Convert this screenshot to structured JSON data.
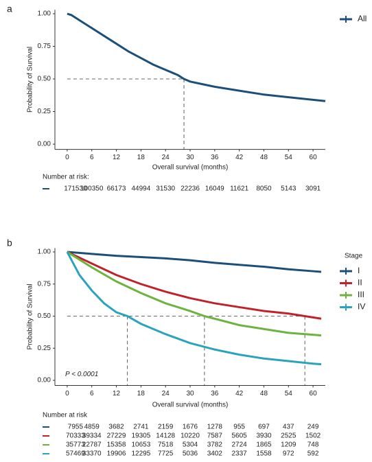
{
  "chart_data": [
    {
      "type": "line",
      "panel_label": "a",
      "xlabel": "Overall survival (months)",
      "ylabel": "Probability of Survival",
      "xlim": [
        -3,
        63
      ],
      "ylim": [
        -0.04,
        1.03
      ],
      "xticks": [
        0,
        6,
        12,
        18,
        24,
        30,
        36,
        42,
        48,
        54,
        60
      ],
      "yticks": [
        {
          "value": 0,
          "label": "0.00"
        },
        {
          "value": 0.25,
          "label": "0.25"
        },
        {
          "value": 0.5,
          "label": "0.50"
        },
        {
          "value": 0.75,
          "label": "0.75"
        },
        {
          "value": 1,
          "label": "1.00"
        }
      ],
      "median_y": 0.5,
      "median_x": [
        28.5
      ],
      "series": [
        {
          "name": "All",
          "color": "#1b4f7a",
          "x": [
            0,
            1,
            3,
            6,
            9,
            12,
            15,
            18,
            21,
            24,
            27,
            28.5,
            30,
            33,
            36,
            42,
            48,
            54,
            60,
            63
          ],
          "values": [
            1.0,
            0.99,
            0.95,
            0.89,
            0.83,
            0.77,
            0.71,
            0.66,
            0.61,
            0.57,
            0.53,
            0.5,
            0.48,
            0.46,
            0.44,
            0.41,
            0.38,
            0.36,
            0.34,
            0.33
          ]
        }
      ],
      "risk_table": {
        "title": "Number at risk:",
        "rows": [
          [
            171530,
            100350,
            66173,
            44994,
            31530,
            22236,
            16049,
            11621,
            8050,
            5143,
            3091
          ]
        ]
      }
    },
    {
      "type": "line",
      "panel_label": "b",
      "xlabel": "Overall survival (months)",
      "ylabel": "Probability of Survival",
      "xlim": [
        -3,
        63
      ],
      "ylim": [
        -0.04,
        1.03
      ],
      "xticks": [
        0,
        6,
        12,
        18,
        24,
        30,
        36,
        42,
        48,
        54,
        60
      ],
      "yticks": [
        {
          "value": 0,
          "label": "0.00"
        },
        {
          "value": 0.25,
          "label": "0.25"
        },
        {
          "value": 0.5,
          "label": "0.50"
        },
        {
          "value": 0.75,
          "label": "0.75"
        },
        {
          "value": 1,
          "label": "1.00"
        }
      ],
      "legend_title": "Stage",
      "annotation": "P < 0.0001",
      "median_y": 0.5,
      "median_x": [
        14.7,
        33.5,
        58
      ],
      "series": [
        {
          "name": "I",
          "color": "#1b4f7a",
          "x": [
            0,
            6,
            12,
            18,
            24,
            30,
            36,
            42,
            48,
            54,
            60,
            62
          ],
          "values": [
            1.0,
            0.985,
            0.97,
            0.96,
            0.95,
            0.935,
            0.915,
            0.9,
            0.885,
            0.865,
            0.85,
            0.845
          ]
        },
        {
          "name": "II",
          "color": "#c0222a",
          "x": [
            0,
            6,
            12,
            18,
            24,
            30,
            36,
            42,
            48,
            54,
            58,
            60,
            62
          ],
          "values": [
            1.0,
            0.91,
            0.82,
            0.75,
            0.69,
            0.64,
            0.6,
            0.57,
            0.54,
            0.52,
            0.5,
            0.49,
            0.48
          ]
        },
        {
          "name": "III",
          "color": "#6db33f",
          "x": [
            0,
            6,
            12,
            18,
            24,
            30,
            33.5,
            36,
            42,
            48,
            54,
            60,
            62
          ],
          "values": [
            1.0,
            0.88,
            0.77,
            0.68,
            0.6,
            0.54,
            0.5,
            0.48,
            0.43,
            0.4,
            0.37,
            0.355,
            0.35
          ]
        },
        {
          "name": "IV",
          "color": "#2ba3bd",
          "x": [
            0,
            3,
            6,
            9,
            12,
            14.7,
            18,
            24,
            30,
            36,
            42,
            48,
            54,
            60,
            62
          ],
          "values": [
            1.0,
            0.82,
            0.7,
            0.6,
            0.53,
            0.5,
            0.44,
            0.36,
            0.29,
            0.24,
            0.2,
            0.17,
            0.15,
            0.13,
            0.125
          ]
        }
      ],
      "risk_table": {
        "title": "Number at risk",
        "rows": [
          [
            7955,
            4859,
            3682,
            2741,
            2159,
            1676,
            1278,
            955,
            697,
            437,
            249
          ],
          [
            70333,
            39334,
            27229,
            19305,
            14128,
            10220,
            7587,
            5605,
            3930,
            2525,
            1502
          ],
          [
            35773,
            22787,
            15358,
            10653,
            7518,
            5304,
            3782,
            2724,
            1865,
            1209,
            748
          ],
          [
            57469,
            33370,
            19906,
            12295,
            7725,
            5036,
            3402,
            2337,
            1558,
            972,
            592
          ]
        ]
      }
    }
  ]
}
